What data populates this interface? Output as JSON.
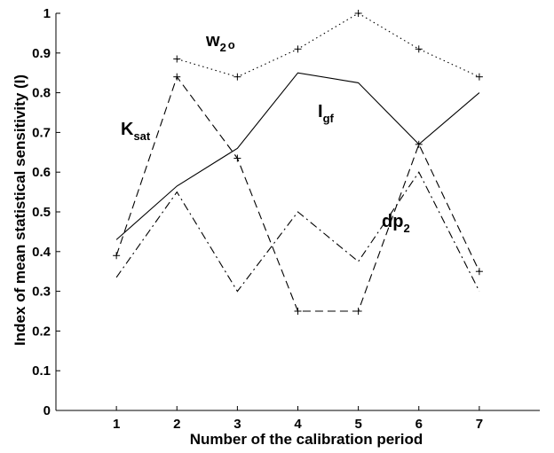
{
  "chart_data": {
    "type": "line",
    "xlabel": "Number of the calibration period",
    "ylabel": "Index of mean statistical sensitivity (I)",
    "xlim": [
      0,
      8
    ],
    "ylim": [
      0,
      1
    ],
    "xticks": [
      "1",
      "2",
      "3",
      "4",
      "5",
      "6",
      "7"
    ],
    "yticks": [
      "0",
      "0.1",
      "0.2",
      "0.3",
      "0.4",
      "0.5",
      "0.6",
      "0.7",
      "0.8",
      "0.9",
      "1"
    ],
    "grid": false,
    "x": [
      1,
      2,
      3,
      4,
      5,
      6,
      7
    ],
    "series": [
      {
        "id": "ksat",
        "values": [
          0.39,
          0.84,
          0.635,
          0.25,
          0.25,
          0.67,
          0.35
        ],
        "style": "dashed",
        "markers": true
      },
      {
        "id": "w2o",
        "values": [
          null,
          0.885,
          0.84,
          0.91,
          1.0,
          0.91,
          0.84
        ],
        "style": "dotted",
        "markers": true
      },
      {
        "id": "igf",
        "values": [
          0.43,
          0.565,
          0.66,
          0.85,
          0.825,
          0.67,
          0.8
        ],
        "style": "solid",
        "markers": false
      },
      {
        "id": "dp2",
        "values": [
          0.335,
          0.55,
          0.3,
          0.5,
          0.375,
          0.6,
          0.3
        ],
        "style": "dashdot",
        "markers": false
      }
    ],
    "annotations": [
      {
        "id": "ksat",
        "main": "K",
        "sub": "sat"
      },
      {
        "id": "w2o",
        "main": "w",
        "sub": "2",
        "subsub": "o"
      },
      {
        "id": "igf",
        "main": "I",
        "sub": "gf"
      },
      {
        "id": "dp2",
        "main": "dp",
        "sub": "2"
      }
    ]
  }
}
